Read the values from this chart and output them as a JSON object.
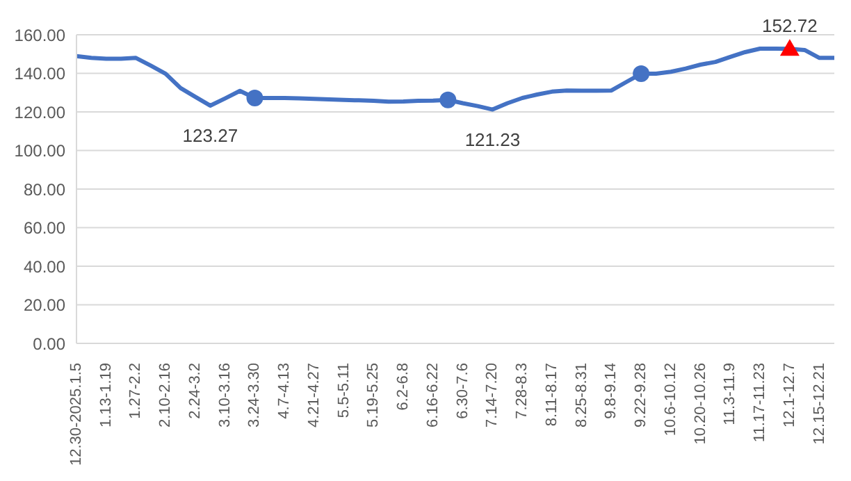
{
  "chart_data": {
    "type": "line",
    "categories": [
      "12.30-2025.1.5",
      null,
      "1.13-1.19",
      null,
      "1.27-2.2",
      null,
      "2.10-2.16",
      null,
      "2.24-3.2",
      null,
      "3.10-3.16",
      null,
      "3.24-3.30",
      null,
      "4.7-4.13",
      null,
      "4.21-4.27",
      null,
      "5.5-5.11",
      null,
      "5.19-5.25",
      null,
      "6.2-6.8",
      null,
      "6.16-6.22",
      null,
      "6.30-7.6",
      null,
      "7.14-7.20",
      null,
      "7.28-8.3",
      null,
      "8.11-8.17",
      null,
      "8.25-8.31",
      null,
      "9.8-9.14",
      null,
      "9.22-9.28",
      null,
      "10.6-10.12",
      null,
      "10.20-10.26",
      null,
      "11.3-11.9",
      null,
      "11.17-11.23",
      null,
      "12.1-12.7",
      null,
      "12.15-12.21",
      null
    ],
    "series": [
      {
        "color": "#4472c4",
        "marker": "none",
        "values": [
          148.9,
          148,
          147.6,
          147.6,
          148,
          144,
          139.8,
          132.4,
          127.8,
          123.27,
          127,
          130.9,
          127.2,
          127.2,
          127.2,
          127,
          126.8,
          126.5,
          126.2,
          126,
          125.8,
          125.3,
          125.4,
          125.8,
          125.9,
          126.2,
          124.5,
          123,
          121.23,
          124.5,
          127.2,
          129,
          130.5,
          131.1,
          131,
          131,
          131.1,
          135.5,
          139.8,
          139.8,
          140.8,
          142.5,
          144.5,
          145.9,
          148.5,
          151,
          152.8,
          152.8,
          152.72,
          152.1,
          148,
          148
        ],
        "value_labels": [
          null,
          null,
          null,
          null,
          null,
          null,
          null,
          null,
          null,
          "123.27",
          null,
          null,
          null,
          null,
          null,
          null,
          null,
          null,
          null,
          null,
          null,
          null,
          null,
          null,
          null,
          null,
          null,
          null,
          "121.23",
          null,
          null,
          null,
          null,
          null,
          null,
          null,
          null,
          null,
          null,
          null,
          null,
          null,
          null,
          null,
          null,
          null,
          null,
          null,
          null,
          null,
          null,
          null
        ]
      },
      {
        "type": "scatter",
        "color": "#4472c4",
        "marker": "circle",
        "values": [
          null,
          null,
          null,
          null,
          null,
          null,
          null,
          null,
          null,
          null,
          null,
          null,
          127.2,
          null,
          null,
          null,
          null,
          null,
          null,
          null,
          null,
          null,
          null,
          null,
          null,
          126.2,
          null,
          null,
          null,
          null,
          null,
          null,
          null,
          null,
          null,
          null,
          null,
          null,
          139.8,
          null,
          null,
          null,
          null,
          null,
          null,
          null,
          null,
          null,
          null,
          null,
          null,
          null
        ]
      },
      {
        "type": "scatter",
        "color": "#ff0000",
        "marker": "triangle",
        "values": [
          null,
          null,
          null,
          null,
          null,
          null,
          null,
          null,
          null,
          null,
          null,
          null,
          null,
          null,
          null,
          null,
          null,
          null,
          null,
          null,
          null,
          null,
          null,
          null,
          null,
          null,
          null,
          null,
          null,
          null,
          null,
          null,
          null,
          null,
          null,
          null,
          null,
          null,
          null,
          null,
          null,
          null,
          null,
          null,
          null,
          null,
          null,
          null,
          152.72,
          null,
          null,
          null
        ],
        "value_labels": [
          null,
          null,
          null,
          null,
          null,
          null,
          null,
          null,
          null,
          null,
          null,
          null,
          null,
          null,
          null,
          null,
          null,
          null,
          null,
          null,
          null,
          null,
          null,
          null,
          null,
          null,
          null,
          null,
          null,
          null,
          null,
          null,
          null,
          null,
          null,
          null,
          null,
          null,
          null,
          null,
          null,
          null,
          null,
          null,
          null,
          null,
          null,
          null,
          "152.72",
          null,
          null,
          null
        ]
      }
    ],
    "ylim": [
      0,
      160
    ],
    "yticks": [
      {
        "value": 0,
        "label": "0.00"
      },
      {
        "value": 20,
        "label": "20.00"
      },
      {
        "value": 40,
        "label": "40.00"
      },
      {
        "value": 60,
        "label": "60.00"
      },
      {
        "value": 80,
        "label": "80.00"
      },
      {
        "value": 100,
        "label": "100.00"
      },
      {
        "value": 120,
        "label": "120.00"
      },
      {
        "value": 140,
        "label": "140.00"
      },
      {
        "value": 160,
        "label": "160.00"
      }
    ],
    "grid": "y",
    "legend": false
  }
}
